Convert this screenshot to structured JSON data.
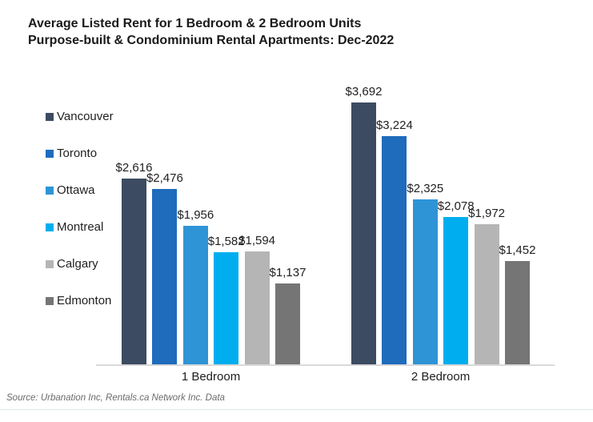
{
  "title": {
    "line1": "Average Listed Rent for 1 Bedroom & 2 Bedroom Units",
    "line2": "Purpose-built & Condominium Rental Apartments: Dec-2022"
  },
  "source": "Source: Urbanation Inc, Rentals.ca Network Inc. Data",
  "chart_data": {
    "type": "bar",
    "title": "Average Listed Rent for 1 Bedroom & 2 Bedroom Units — Purpose-built & Condominium Rental Apartments: Dec-2022",
    "categories": [
      "1 Bedroom",
      "2 Bedroom"
    ],
    "series": [
      {
        "name": "Vancouver",
        "color": "#3C4B61",
        "values": [
          2616,
          3692
        ]
      },
      {
        "name": "Toronto",
        "color": "#1F6BBC",
        "values": [
          2476,
          3224
        ]
      },
      {
        "name": "Ottawa",
        "color": "#2E94D6",
        "values": [
          1956,
          2325
        ]
      },
      {
        "name": "Montreal",
        "color": "#00AEEF",
        "values": [
          1582,
          2078
        ]
      },
      {
        "name": "Calgary",
        "color": "#B5B5B5",
        "values": [
          1594,
          1972
        ]
      },
      {
        "name": "Edmonton",
        "color": "#757575",
        "values": [
          1137,
          1452
        ]
      }
    ],
    "value_label_format": "$#,##0",
    "value_label_prefix": "$",
    "ylim": [
      0,
      3800
    ],
    "grid": false,
    "legend_position": "left",
    "axis_line_color": "#d9d9d9"
  }
}
